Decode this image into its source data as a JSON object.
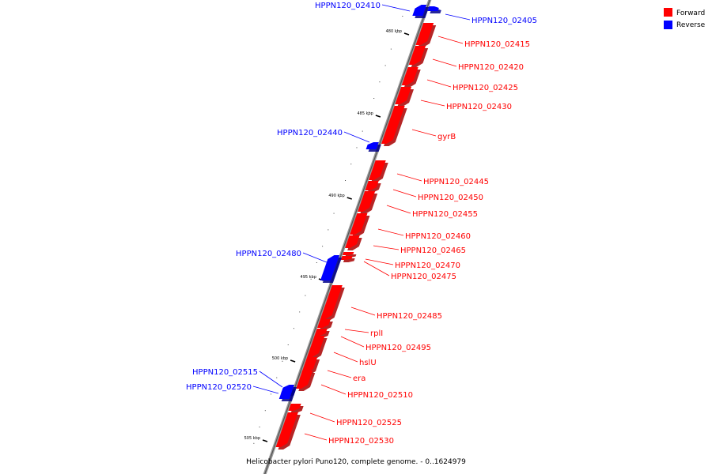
{
  "legend": {
    "forward_label": "Forward",
    "reverse_label": "Reverse",
    "forward_color": "#ff0000",
    "reverse_color": "#0000ff"
  },
  "caption": "Helicobacter pylori Puno120, complete genome. - 0..1624979",
  "axis_ticks": [
    "480 kbp",
    "485 kbp",
    "490 kbp",
    "495 kbp",
    "500 kbp",
    "505 kbp"
  ],
  "genes": [
    {
      "name": "HPPN120_02410",
      "strand": "reverse"
    },
    {
      "name": "HPPN120_02405",
      "strand": "reverse"
    },
    {
      "name": "HPPN120_02415",
      "strand": "forward"
    },
    {
      "name": "HPPN120_02420",
      "strand": "forward"
    },
    {
      "name": "HPPN120_02425",
      "strand": "forward"
    },
    {
      "name": "HPPN120_02430",
      "strand": "forward"
    },
    {
      "name": "gyrB",
      "strand": "forward"
    },
    {
      "name": "HPPN120_02440",
      "strand": "reverse"
    },
    {
      "name": "HPPN120_02445",
      "strand": "forward"
    },
    {
      "name": "HPPN120_02450",
      "strand": "forward"
    },
    {
      "name": "HPPN120_02455",
      "strand": "forward"
    },
    {
      "name": "HPPN120_02460",
      "strand": "forward"
    },
    {
      "name": "HPPN120_02465",
      "strand": "forward"
    },
    {
      "name": "HPPN120_02470",
      "strand": "forward"
    },
    {
      "name": "HPPN120_02475",
      "strand": "forward"
    },
    {
      "name": "HPPN120_02480",
      "strand": "reverse"
    },
    {
      "name": "HPPN120_02485",
      "strand": "forward"
    },
    {
      "name": "rplI",
      "strand": "forward"
    },
    {
      "name": "HPPN120_02495",
      "strand": "forward"
    },
    {
      "name": "hslU",
      "strand": "forward"
    },
    {
      "name": "era",
      "strand": "forward"
    },
    {
      "name": "HPPN120_02510",
      "strand": "forward"
    },
    {
      "name": "HPPN120_02515",
      "strand": "reverse"
    },
    {
      "name": "HPPN120_02520",
      "strand": "reverse"
    },
    {
      "name": "HPPN120_02525",
      "strand": "forward"
    },
    {
      "name": "HPPN120_02530",
      "strand": "forward"
    }
  ]
}
